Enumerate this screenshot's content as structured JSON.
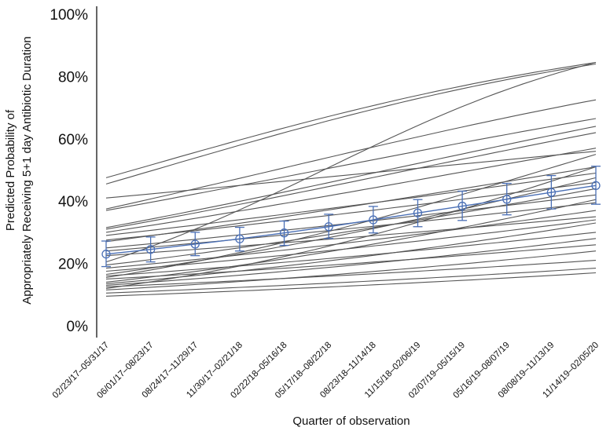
{
  "chart_data": {
    "type": "line",
    "title": "",
    "xlabel": "Quarter of observation",
    "ylabel_lines": [
      "Predicted Probability of",
      "Appropriately Receiving 5+1 day Antibiotic Duration"
    ],
    "ylim": [
      0,
      1
    ],
    "yticks": [
      0,
      0.2,
      0.4,
      0.6,
      0.8,
      1.0
    ],
    "ytick_labels": [
      "0%",
      "20%",
      "40%",
      "60%",
      "80%",
      "100%"
    ],
    "categories": [
      "02/23/17–05/31/17",
      "06/01/17–08/23/17",
      "08/24/17–11/29/17",
      "11/30/17–02/21/18",
      "02/22/18–05/16/18",
      "05/17/18–08/22/18",
      "08/23/18–11/14/18",
      "11/15/18–02/06/19",
      "02/07/19–05/15/19",
      "05/16/19–08/07/19",
      "08/08/19–11/13/19",
      "11/14/19–02/05/20"
    ],
    "grid": false,
    "colors": {
      "facility_lines": "#555555",
      "overall": "#4a6fb5"
    },
    "overall": {
      "name": "",
      "values": [
        0.23,
        0.245,
        0.262,
        0.279,
        0.298,
        0.318,
        0.34,
        0.362,
        0.384,
        0.406,
        0.428,
        0.45
      ],
      "ci_low": [
        0.19,
        0.205,
        0.225,
        0.24,
        0.258,
        0.28,
        0.298,
        0.318,
        0.338,
        0.356,
        0.375,
        0.39
      ],
      "ci_high": [
        0.272,
        0.285,
        0.3,
        0.316,
        0.336,
        0.358,
        0.383,
        0.405,
        0.432,
        0.457,
        0.482,
        0.512
      ]
    },
    "facility_lines": [
      {
        "start": 0.475,
        "end": 0.845
      },
      {
        "start": 0.455,
        "end": 0.84
      },
      {
        "start": 0.41,
        "end": 0.56
      },
      {
        "start": 0.375,
        "end": 0.725
      },
      {
        "start": 0.37,
        "end": 0.665
      },
      {
        "start": 0.315,
        "end": 0.64
      },
      {
        "start": 0.31,
        "end": 0.62
      },
      {
        "start": 0.3,
        "end": 0.57
      },
      {
        "start": 0.29,
        "end": 0.49
      },
      {
        "start": 0.275,
        "end": 0.46
      },
      {
        "start": 0.27,
        "end": 0.51
      },
      {
        "start": 0.25,
        "end": 0.42
      },
      {
        "start": 0.24,
        "end": 0.395
      },
      {
        "start": 0.225,
        "end": 0.35
      },
      {
        "start": 0.205,
        "end": 0.845
      },
      {
        "start": 0.195,
        "end": 0.44
      },
      {
        "start": 0.185,
        "end": 0.37
      },
      {
        "start": 0.175,
        "end": 0.34
      },
      {
        "start": 0.165,
        "end": 0.475
      },
      {
        "start": 0.16,
        "end": 0.3
      },
      {
        "start": 0.155,
        "end": 0.55
      },
      {
        "start": 0.15,
        "end": 0.26
      },
      {
        "start": 0.14,
        "end": 0.405
      },
      {
        "start": 0.135,
        "end": 0.33
      },
      {
        "start": 0.13,
        "end": 0.28
      },
      {
        "start": 0.125,
        "end": 0.21
      },
      {
        "start": 0.12,
        "end": 0.51
      },
      {
        "start": 0.105,
        "end": 0.185
      },
      {
        "start": 0.095,
        "end": 0.17
      },
      {
        "start": 0.115,
        "end": 0.24
      }
    ]
  }
}
